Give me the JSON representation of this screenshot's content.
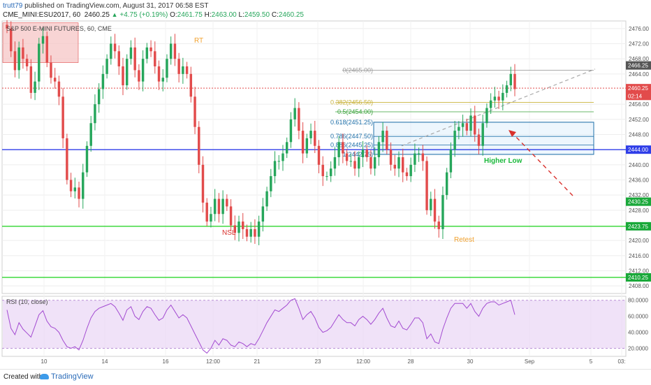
{
  "header": {
    "user": "trutt79",
    "published": "published on TradingView.com, August 31, 2017 06:58 EST",
    "symbol": "CME_MINI:ESU2017, 60",
    "last": "2460.25",
    "change": "+4.75 (+0.19%)",
    "o_label": "O:",
    "o": "2461.75",
    "h_label": "H:",
    "h": "2463.00",
    "l_label": "L:",
    "l": "2459.50",
    "c_label": "C:",
    "c": "2460.25"
  },
  "footer": {
    "created_with": "Created with",
    "brand": "TradingView"
  },
  "colors": {
    "up": "#26a65b",
    "down": "#e24b4b",
    "green_line": "#19d219",
    "blue_line": "#2f3ee8",
    "red_dotted": "#e24b4b",
    "rsi": "#a34bd1",
    "rsi_band": "#e9d6f5",
    "box": "#1e6fa8",
    "annot_orange": "#f1a12e",
    "annot_red": "#d9302c",
    "annot_green": "#19b83a"
  },
  "chart_data": [
    {
      "type": "candlestick",
      "title": "S&P 500 E-MINI FUTURES, 60, CME",
      "y_ticks": [
        2408,
        2412,
        2416,
        2420,
        2428,
        2432,
        2436,
        2440,
        2448,
        2452,
        2456,
        2464,
        2468,
        2472,
        2476
      ],
      "ylim": [
        2406,
        2478
      ],
      "x_ticks": [
        "10",
        "14",
        "16",
        "12:00",
        "21",
        "23",
        "12:00",
        "28",
        "30",
        "Sep",
        "5",
        "03:"
      ],
      "price_labels": [
        {
          "value": 2466.25,
          "text": "2466.25",
          "color": "#555555"
        },
        {
          "value": 2460.25,
          "text": "2460.25",
          "color": "#e24b4b"
        },
        {
          "value": 2458.2,
          "text": "02:14",
          "color": "#e24b4b"
        },
        {
          "value": 2444.0,
          "text": "2444.00",
          "color": "#2f3ee8"
        },
        {
          "value": 2430.25,
          "text": "2430.25",
          "color": "#19a839"
        },
        {
          "value": 2423.75,
          "text": "2423.75",
          "color": "#19a839"
        },
        {
          "value": 2410.25,
          "text": "2410.25",
          "color": "#19a839"
        }
      ],
      "horizontal_lines": [
        {
          "value": 2444.0,
          "color": "blue"
        },
        {
          "value": 2423.75,
          "color": "green"
        },
        {
          "value": 2410.25,
          "color": "green"
        },
        {
          "value": 2460.25,
          "color": "red-dotted"
        }
      ],
      "fib_levels": [
        {
          "label": "0(2465.00)",
          "value": 2465.0
        },
        {
          "label": "0.382(2456.50)",
          "value": 2456.5
        },
        {
          "label": "0.5(2454.00)",
          "value": 2454.0
        },
        {
          "label": "0.618(2451.25)",
          "value": 2451.25
        },
        {
          "label": "0.786(2447.50)",
          "value": 2447.5
        },
        {
          "label": "0.886(2445.25)",
          "value": 2445.25
        },
        {
          "label": "1(2442.75)",
          "value": 2442.75
        }
      ],
      "annotations": [
        "RT",
        "NSL",
        "Higher Low",
        "Retest"
      ],
      "series": [
        {
          "name": "",
          "close": [
            2476,
            2470,
            2465,
            2471,
            2468,
            2466,
            2459,
            2462,
            2472,
            2474,
            2467,
            2463,
            2462,
            2458,
            2447,
            2436,
            2433,
            2434,
            2431,
            2438,
            2445,
            2451,
            2456,
            2460,
            2464,
            2468,
            2472,
            2470,
            2466,
            2461,
            2468,
            2471,
            2465,
            2462,
            2468,
            2471,
            2470,
            2466,
            2462,
            2463,
            2468,
            2472,
            2468,
            2464,
            2466,
            2464,
            2458,
            2450,
            2440,
            2430,
            2425,
            2427,
            2431,
            2427,
            2431,
            2429,
            2424,
            2422,
            2425,
            2423,
            2421,
            2423,
            2421,
            2425,
            2429,
            2433,
            2437,
            2441,
            2441,
            2443,
            2446,
            2452,
            2455,
            2449,
            2443,
            2447,
            2449,
            2445,
            2440,
            2437,
            2437,
            2439,
            2442,
            2446,
            2443,
            2441,
            2441,
            2439,
            2442,
            2444,
            2442,
            2439,
            2442,
            2446,
            2449,
            2444,
            2440,
            2439,
            2442,
            2438,
            2437,
            2440,
            2443,
            2443,
            2441,
            2428,
            2431,
            2425,
            2423,
            2432,
            2438,
            2444,
            2449,
            2450,
            2451,
            2449,
            2453,
            2448,
            2445,
            2451,
            2455,
            2457,
            2458,
            2457,
            2459,
            2461,
            2464,
            2460
          ]
        }
      ]
    },
    {
      "type": "line",
      "title": "RSI (10, close)",
      "y_ticks": [
        20,
        40,
        60,
        80
      ],
      "tick_labels": [
        "20.0000",
        "40.0000",
        "60.0000",
        "80.0000"
      ],
      "ylim": [
        10,
        85
      ],
      "band": [
        20,
        80
      ],
      "series": [
        {
          "name": "",
          "values": [
            68,
            45,
            37,
            52,
            44,
            39,
            34,
            48,
            62,
            67,
            54,
            47,
            45,
            40,
            30,
            22,
            20,
            22,
            18,
            30,
            45,
            58,
            66,
            70,
            72,
            74,
            76,
            72,
            64,
            55,
            68,
            72,
            60,
            56,
            66,
            72,
            70,
            62,
            55,
            58,
            68,
            74,
            66,
            58,
            62,
            58,
            48,
            38,
            28,
            18,
            14,
            20,
            30,
            24,
            32,
            30,
            24,
            22,
            28,
            26,
            22,
            26,
            24,
            32,
            42,
            52,
            60,
            68,
            66,
            70,
            74,
            80,
            82,
            70,
            56,
            62,
            66,
            58,
            46,
            40,
            42,
            46,
            54,
            62,
            56,
            52,
            52,
            48,
            56,
            60,
            56,
            50,
            56,
            64,
            70,
            58,
            48,
            46,
            54,
            45,
            43,
            50,
            58,
            58,
            52,
            32,
            38,
            28,
            26,
            44,
            58,
            70,
            76,
            76,
            76,
            70,
            76,
            66,
            60,
            70,
            76,
            78,
            78,
            74,
            76,
            78,
            80,
            62
          ]
        }
      ]
    }
  ]
}
